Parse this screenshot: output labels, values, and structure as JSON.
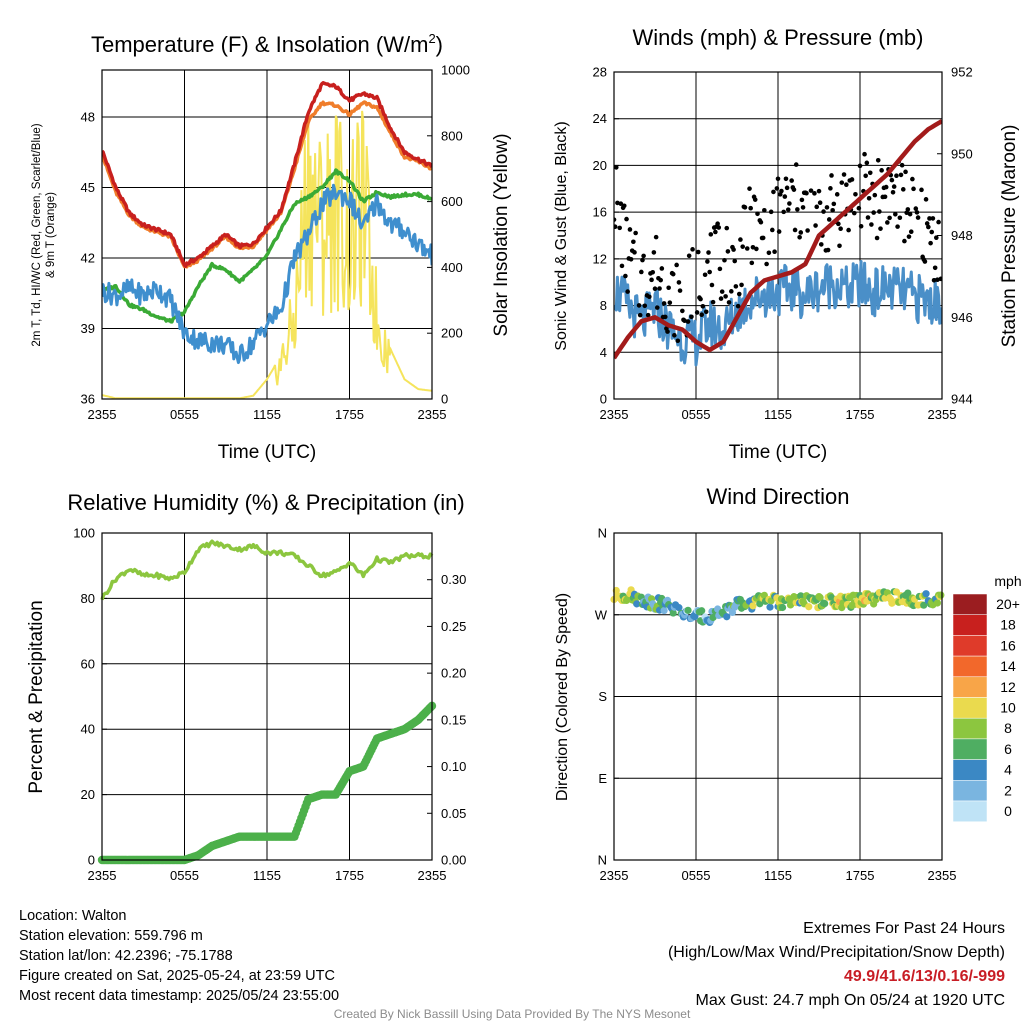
{
  "chart_data": [
    {
      "type": "line",
      "title": "Temperature (F) & Insolation (W/m2)",
      "xlabel": "Time (UTC)",
      "ylabel": "2m T, Td, HI/WC (Red, Green, Scarlet/Blue) & 9m T (Orange)",
      "y2label": "Solar Insolation (Yellow)",
      "x_ticks": [
        "2355",
        "0555",
        "1155",
        "1755",
        "2355"
      ],
      "ylim": [
        36,
        50
      ],
      "y_ticks": [
        36,
        39,
        42,
        45,
        48
      ],
      "y2lim": [
        0,
        1000
      ],
      "y2_ticks": [
        0,
        200,
        400,
        600,
        800,
        1000
      ],
      "x_hours": [
        0,
        1,
        2,
        3,
        4,
        5,
        6,
        7,
        8,
        9,
        10,
        11,
        12,
        13,
        14,
        15,
        16,
        17,
        18,
        19,
        20,
        21,
        22,
        23,
        24
      ],
      "series": [
        {
          "name": "2m T",
          "color": "#c8201e",
          "axis": "left",
          "values": [
            46.6,
            45.0,
            43.9,
            43.4,
            43.2,
            43.0,
            41.7,
            42.0,
            42.5,
            43.0,
            42.5,
            42.6,
            43.3,
            44.0,
            46.0,
            48.2,
            49.4,
            49.3,
            48.7,
            49.0,
            48.8,
            47.5,
            46.5,
            46.2,
            45.9
          ]
        },
        {
          "name": "9m T",
          "color": "#f07d2b",
          "axis": "left",
          "values": [
            46.4,
            44.8,
            43.8,
            43.3,
            43.1,
            42.9,
            41.6,
            41.9,
            42.4,
            42.9,
            42.4,
            42.5,
            43.2,
            43.9,
            45.8,
            47.8,
            48.6,
            48.5,
            48.1,
            48.6,
            48.4,
            47.3,
            46.3,
            46.1,
            45.8
          ]
        },
        {
          "name": "Td",
          "color": "#3aaa35",
          "axis": "left",
          "values": [
            40.6,
            40.8,
            40.0,
            39.8,
            39.5,
            39.3,
            39.7,
            40.8,
            41.7,
            41.5,
            41.0,
            41.5,
            42.1,
            43.2,
            44.3,
            44.6,
            45.0,
            45.7,
            45.3,
            44.4,
            44.8,
            44.6,
            44.7,
            44.7,
            44.5
          ]
        },
        {
          "name": "HI/WC",
          "color": "#3f8fce",
          "axis": "left",
          "values": [
            40.6,
            40.4,
            40.7,
            40.4,
            40.7,
            40.2,
            38.8,
            38.5,
            38.4,
            38.3,
            37.8,
            38.4,
            39.2,
            39.8,
            42.0,
            43.0,
            44.3,
            44.8,
            44.5,
            43.3,
            44.4,
            43.4,
            43.2,
            42.6,
            42.1
          ]
        },
        {
          "name": "Solar Insolation",
          "color": "#f5e45c",
          "axis": "right",
          "values": [
            12,
            2,
            2,
            2,
            2,
            2,
            2,
            2,
            2,
            2,
            2,
            10,
            60,
            130,
            300,
            820,
            650,
            760,
            600,
            730,
            300,
            150,
            60,
            30,
            25
          ]
        }
      ]
    },
    {
      "type": "scatter",
      "title": "Winds (mph) & Pressure (mb)",
      "xlabel": "Time (UTC)",
      "ylabel": "Sonic Wind & Gust (Blue, Black)",
      "y2label": "Station Pressure (Maroon)",
      "x_ticks": [
        "2355",
        "0555",
        "1155",
        "1755",
        "2355"
      ],
      "ylim": [
        0,
        28
      ],
      "y_ticks": [
        0,
        4,
        8,
        12,
        16,
        20,
        24,
        28
      ],
      "y2lim": [
        944,
        952
      ],
      "y2_ticks": [
        944,
        946,
        948,
        950,
        952
      ],
      "x_hours": [
        0,
        1,
        2,
        3,
        4,
        5,
        6,
        7,
        8,
        9,
        10,
        11,
        12,
        13,
        14,
        15,
        16,
        17,
        18,
        19,
        20,
        21,
        22,
        23,
        24
      ],
      "series": [
        {
          "name": "Sonic Wind",
          "color": "#4a8fc8",
          "axis": "left",
          "values": [
            9.5,
            8.0,
            6.5,
            7.8,
            6.0,
            5.2,
            5.0,
            6.5,
            5.8,
            7.5,
            8.6,
            9.0,
            9.2,
            9.5,
            8.8,
            9.6,
            10.0,
            9.3,
            9.8,
            9.1,
            9.6,
            9.2,
            8.7,
            8.4,
            8.2
          ]
        },
        {
          "name": "Gust",
          "color": "#000000",
          "axis": "left",
          "values": [
            18,
            12,
            10,
            11,
            9,
            8,
            10,
            11,
            12,
            11,
            15,
            14,
            16,
            17,
            16,
            15,
            16,
            17,
            18,
            17,
            18,
            17,
            16,
            14,
            13
          ]
        },
        {
          "name": "Station Pressure",
          "color": "#a31b1b",
          "axis": "right",
          "values": [
            945.0,
            945.5,
            945.9,
            946.0,
            945.8,
            945.7,
            945.4,
            945.2,
            945.4,
            946.0,
            946.6,
            946.9,
            947.0,
            947.1,
            947.3,
            948.0,
            948.3,
            948.6,
            948.9,
            949.2,
            949.5,
            949.9,
            950.3,
            950.6,
            950.8
          ]
        }
      ]
    },
    {
      "type": "line",
      "title": "Relative Humidity (%) & Precipitation (in)",
      "xlabel": "",
      "ylabel": "Percent & Precipitation",
      "x_ticks": [
        "2355",
        "0555",
        "1155",
        "1755",
        "2355"
      ],
      "ylim": [
        0,
        100
      ],
      "y_ticks": [
        0,
        20,
        40,
        60,
        80,
        100
      ],
      "y2lim": [
        0,
        0.35
      ],
      "y2_ticks": [
        "0.00",
        "0.05",
        "0.10",
        "0.15",
        "0.20",
        "0.25",
        "0.30"
      ],
      "x_hours": [
        0,
        1,
        2,
        3,
        4,
        5,
        6,
        7,
        8,
        9,
        10,
        11,
        12,
        13,
        14,
        15,
        16,
        17,
        18,
        19,
        20,
        21,
        22,
        23,
        24
      ],
      "series": [
        {
          "name": "Relative Humidity",
          "color": "#8cc63f",
          "axis": "left",
          "values": [
            80,
            86,
            89,
            87,
            87,
            86,
            88,
            95,
            97,
            96,
            95,
            96,
            94,
            94,
            93,
            90,
            87,
            88,
            91,
            87,
            92,
            91,
            93,
            93,
            93
          ]
        },
        {
          "name": "Precipitation",
          "color": "#4cb04a",
          "axis": "right",
          "values": [
            0.0,
            0.0,
            0.0,
            0.0,
            0.0,
            0.0,
            0.0,
            0.005,
            0.015,
            0.02,
            0.025,
            0.025,
            0.025,
            0.025,
            0.025,
            0.065,
            0.07,
            0.07,
            0.095,
            0.1,
            0.13,
            0.135,
            0.14,
            0.15,
            0.165
          ]
        }
      ]
    },
    {
      "type": "scatter",
      "title": "Wind Direction",
      "xlabel": "",
      "ylabel": "Direction (Colored By Speed)",
      "x_ticks": [
        "2355",
        "0555",
        "1155",
        "1755",
        "2355"
      ],
      "y_ticks": [
        "N",
        "E",
        "S",
        "W",
        "N"
      ],
      "ylim": [
        0,
        360
      ],
      "legend": {
        "title": "mph",
        "labels": [
          "20+",
          "18",
          "16",
          "14",
          "12",
          "10",
          "8",
          "6",
          "4",
          "2",
          "0"
        ],
        "colors": [
          "#9b1d20",
          "#c8201e",
          "#df3b2a",
          "#f2682b",
          "#f8a548",
          "#eada4e",
          "#8cc63f",
          "#4fae62",
          "#3b88c4",
          "#7ab5e0",
          "#bfe3f6"
        ]
      },
      "x_hours": [
        0,
        1,
        2,
        3,
        4,
        5,
        6,
        7,
        8,
        9,
        10,
        11,
        12,
        13,
        14,
        15,
        16,
        17,
        18,
        19,
        20,
        21,
        22,
        23,
        24
      ],
      "direction_deg": [
        290,
        292,
        287,
        283,
        280,
        272,
        268,
        268,
        273,
        280,
        283,
        285,
        284,
        283,
        285,
        284,
        286,
        283,
        287,
        286,
        290,
        288,
        287,
        287,
        285
      ],
      "speed_mph": [
        9,
        9,
        6,
        6,
        5,
        4,
        4,
        5,
        5,
        6,
        8,
        8,
        8,
        9,
        8,
        9,
        10,
        9,
        10,
        9,
        10,
        9,
        9,
        8,
        8
      ]
    }
  ],
  "info": {
    "location": "Location: Walton",
    "elevation": "Station elevation: 559.796 m",
    "latlon": "Station lat/lon: 42.2396; -75.1788",
    "created": "Figure created on Sat, 2025-05-24, at 23:59 UTC",
    "recent": "Most recent data timestamp: 2025/05/24 23:55:00",
    "extremes_title": "Extremes For Past 24 Hours",
    "extremes_sub": "(High/Low/Max Wind/Precipitation/Snow Depth)",
    "extremes_values": "49.9/41.6/13/0.16/-999",
    "max_gust": "Max Gust: 24.7 mph On 05/24 at 1920 UTC"
  },
  "credit": "Created By Nick Bassill Using Data Provided By The NYS Mesonet"
}
